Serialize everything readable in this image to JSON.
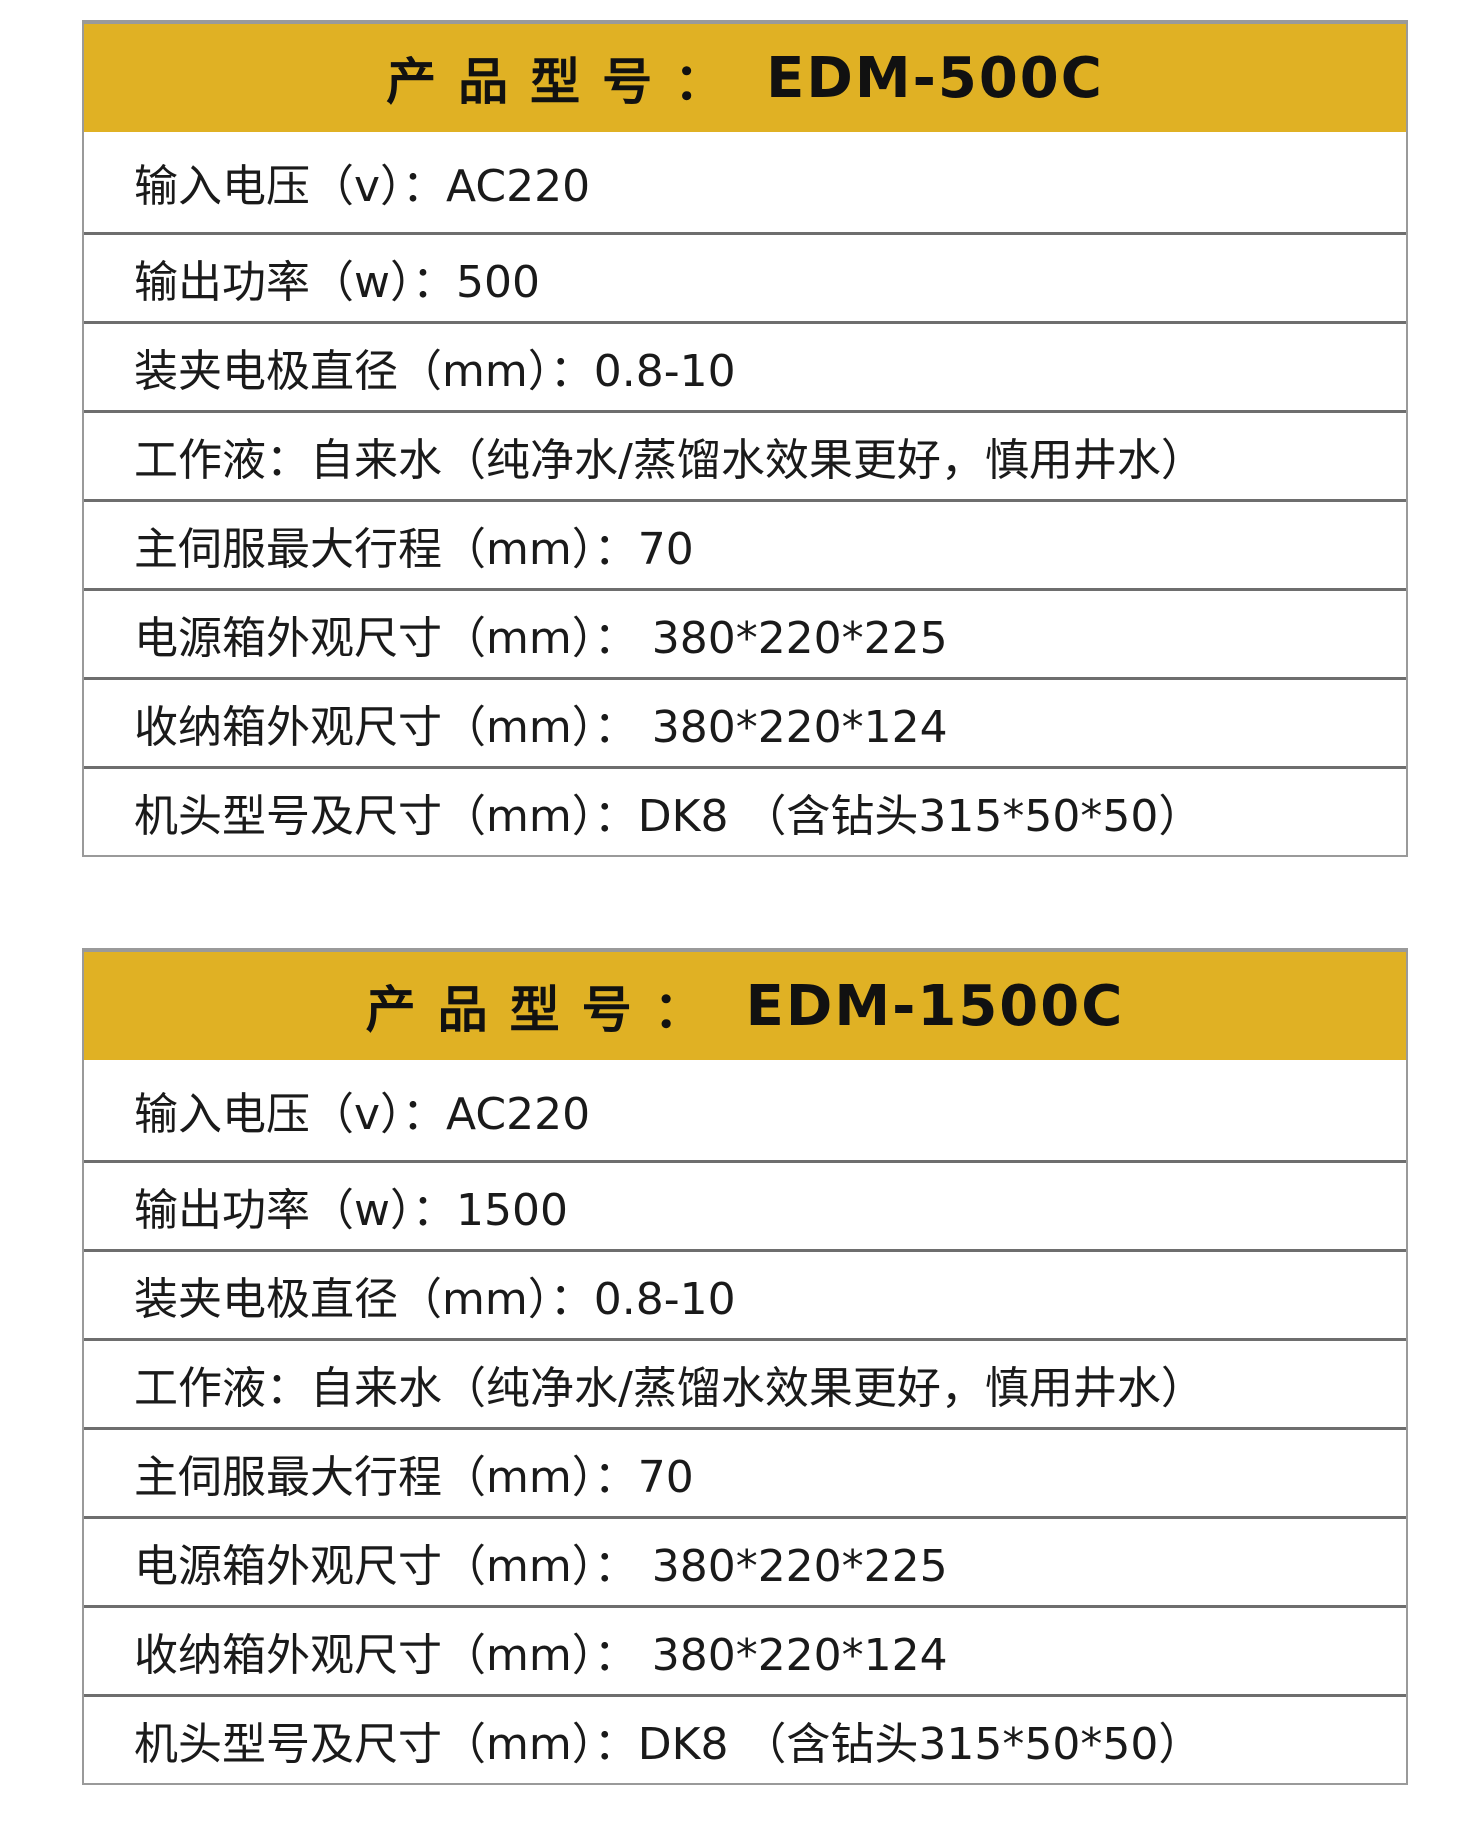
{
  "tables": [
    {
      "header_label": "产品型号：",
      "model": "EDM-500C",
      "rows": [
        "输入电压（v）：AC220",
        "输出功率（w）：500",
        "装夹电极直径（mm）：0.8-10",
        "工作液：自来水（纯净水/蒸馏水效果更好，慎用井水）",
        "主伺服最大行程（mm）：70",
        "电源箱外观尺寸（mm）： 380*220*225",
        "收纳箱外观尺寸（mm）： 380*220*124",
        "机头型号及尺寸（mm）：DK8 （含钻头315*50*50）"
      ]
    },
    {
      "header_label": "产品型号：",
      "model": "EDM-1500C",
      "rows": [
        "输入电压（v）：AC220",
        "输出功率（w）：1500",
        "装夹电极直径（mm）：0.8-10",
        "工作液：自来水（纯净水/蒸馏水效果更好，慎用井水）",
        "主伺服最大行程（mm）：70",
        "电源箱外观尺寸（mm）： 380*220*225",
        "收纳箱外观尺寸（mm）： 380*220*124",
        "机头型号及尺寸（mm）：DK8 （含钻头315*50*50）"
      ]
    }
  ],
  "colors": {
    "header_bg": "#E0B124",
    "border": "#6e6e6e"
  }
}
